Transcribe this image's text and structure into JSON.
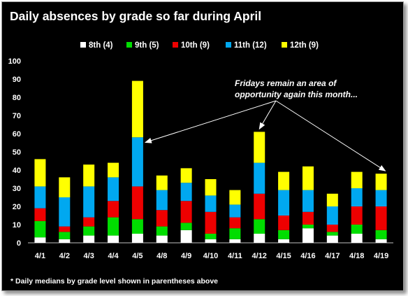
{
  "chart_data": {
    "type": "bar",
    "stacked": true,
    "title": "Daily absences by grade so far during April",
    "categories": [
      "4/1",
      "4/2",
      "4/3",
      "4/4",
      "4/5",
      "4/8",
      "4/9",
      "4/10",
      "4/11",
      "4/12",
      "4/15",
      "4/16",
      "4/17",
      "4/18",
      "4/19"
    ],
    "series": [
      {
        "name": "8th (4)",
        "color": "#ffffff",
        "values": [
          3,
          2,
          4,
          4,
          5,
          4,
          7,
          2,
          2,
          5,
          2,
          8,
          4,
          5,
          2
        ]
      },
      {
        "name": "9th (5)",
        "color": "#00dd00",
        "values": [
          9,
          4,
          5,
          10,
          8,
          5,
          4,
          3,
          6,
          8,
          5,
          2,
          2,
          5,
          5
        ]
      },
      {
        "name": "10th (9)",
        "color": "#ee0000",
        "values": [
          7,
          3,
          5,
          9,
          18,
          9,
          12,
          12,
          6,
          14,
          8,
          7,
          4,
          10,
          13
        ]
      },
      {
        "name": "11th (12)",
        "color": "#00a8f0",
        "values": [
          12,
          16,
          17,
          13,
          27,
          11,
          10,
          9,
          7,
          17,
          14,
          12,
          10,
          10,
          9
        ]
      },
      {
        "name": "12th (9)",
        "color": "#ffff00",
        "values": [
          15,
          11,
          12,
          8,
          31,
          8,
          8,
          9,
          8,
          17,
          10,
          13,
          7,
          9,
          9
        ]
      }
    ],
    "ylim": [
      0,
      100
    ],
    "yticks": [
      0,
      10,
      20,
      30,
      40,
      50,
      60,
      70,
      80,
      90,
      100
    ],
    "grid": false,
    "legend": "top",
    "annotation": {
      "text_line1": "Fridays remain an area of",
      "text_line2": "opportunity again this month...",
      "targets": [
        "4/5",
        "4/12",
        "4/19"
      ]
    },
    "footnote": "* Daily medians by grade level shown in parentheses above"
  }
}
